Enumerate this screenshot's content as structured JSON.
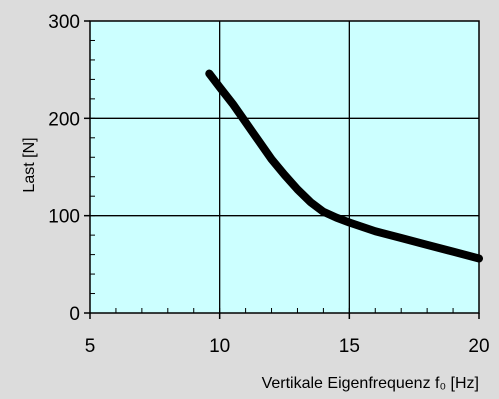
{
  "chart_data": {
    "type": "line",
    "title": "",
    "xlabel": "Vertikale Eigenfrequenz f₀ [Hz]",
    "ylabel": "Last  [N]",
    "xlim": [
      5,
      20
    ],
    "ylim": [
      0,
      300
    ],
    "x_ticks": [
      5,
      10,
      15,
      20
    ],
    "y_ticks": [
      0,
      100,
      200,
      300
    ],
    "x_tick_labels": [
      "5",
      "10",
      "15",
      "20"
    ],
    "y_tick_labels": [
      "0",
      "100",
      "200",
      "300"
    ],
    "grid": true,
    "legend": "none",
    "series": [
      {
        "x": [
          9.6,
          10.0,
          10.5,
          11.0,
          11.5,
          12.0,
          12.5,
          13.0,
          13.5,
          14.0,
          14.5,
          15.0,
          16.0,
          17.0,
          18.0,
          19.0,
          20.0
        ],
        "y": [
          246,
          232,
          215,
          196,
          177,
          158,
          142,
          127,
          114,
          104,
          98,
          93,
          84,
          77,
          70,
          63,
          56
        ]
      }
    ],
    "colors": {
      "background": "#dcdcdc",
      "plot_area": "#ccffff",
      "grid": "#000000",
      "line": "#000000"
    }
  }
}
